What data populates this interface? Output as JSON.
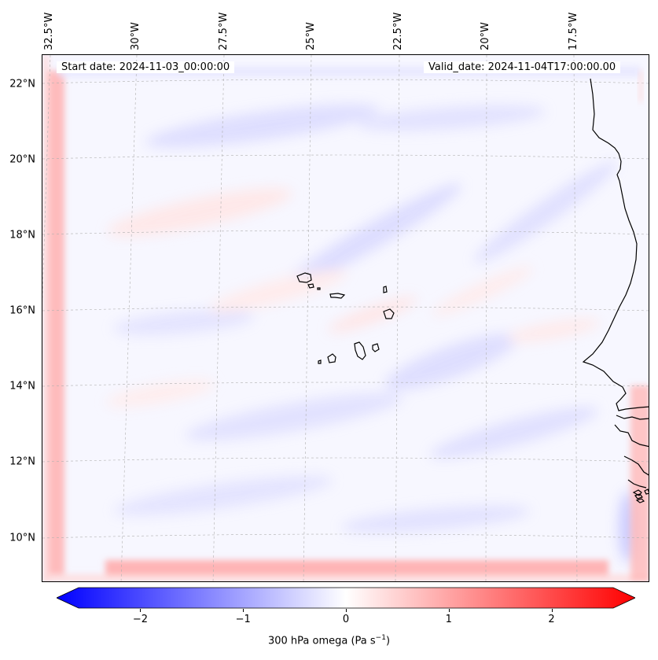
{
  "map": {
    "start_date": "Start date: 2024-11-03_00:00:00",
    "valid_date": "Valid_date: 2024-11-04T17:00:00.00",
    "lon_labels": [
      "32.5°W",
      "30°W",
      "27.5°W",
      "25°W",
      "22.5°W",
      "20°W",
      "17.5°W"
    ],
    "lat_labels": [
      "22°N",
      "20°N",
      "18°N",
      "16°N",
      "14°N",
      "12°N",
      "10°N"
    ],
    "features": [
      "cape-verde-islands",
      "west-african-coastline"
    ]
  },
  "colorbar": {
    "variable": "300 hPa omega",
    "units": "(Pa s",
    "units_exp": "−1",
    "units_close": ")",
    "ticks": [
      "−2",
      "−1",
      "0",
      "1",
      "2"
    ],
    "tick_values": [
      -2,
      -1,
      0,
      1,
      2
    ],
    "range": [
      -2.6,
      2.6
    ],
    "colormap": "bwr",
    "colors": {
      "min": "#0000ff",
      "mid": "#ffffff",
      "max": "#ff0000"
    },
    "extend": "both"
  }
}
